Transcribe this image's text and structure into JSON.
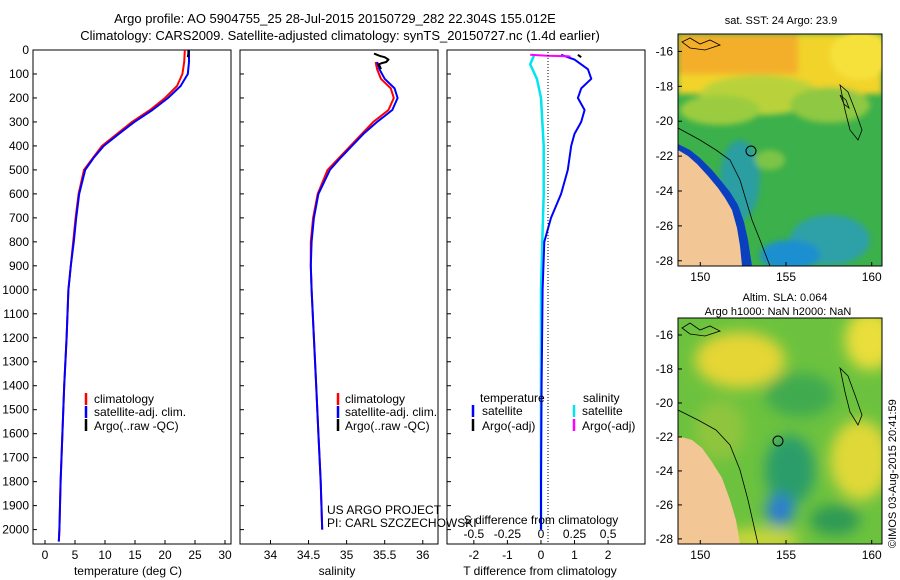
{
  "title": {
    "line1": "Argo profile: AO 5904755_25 28-Jul-2015 20150729_282 22.304S 155.012E",
    "line2": "Climatology: CARS2009. Satellite-adjusted climatology: synTS_20150727.nc (1.4d earlier)"
  },
  "colors": {
    "climatology": "#ff0000",
    "satellite": "#0000ff",
    "argo": "#000000",
    "sal_satellite": "#00e5ee",
    "sal_argo": "#ff00ff"
  },
  "chart_data": [
    {
      "type": "line",
      "id": "temperature",
      "xlabel": "temperature (deg C)",
      "ylabel": "",
      "xlim": [
        -2,
        31
      ],
      "ylim": [
        2060,
        0
      ],
      "xticks": [
        "0",
        "5",
        "10",
        "15",
        "20",
        "25",
        "30"
      ],
      "yticks": [
        "0",
        "100",
        "200",
        "300",
        "400",
        "500",
        "600",
        "700",
        "800",
        "900",
        "1000",
        "1100",
        "1200",
        "1300",
        "1400",
        "1500",
        "1600",
        "1700",
        "1800",
        "1900",
        "2000"
      ],
      "legend": [
        "climatology",
        "satellite-adj. clim.",
        "Argo(..raw -QC)"
      ],
      "series": [
        {
          "name": "climatology",
          "x": [
            23.3,
            23.2,
            22.9,
            22.0,
            20.0,
            17.5,
            14.5,
            12.0,
            9.5,
            8.0,
            6.5,
            5.6,
            5.1,
            4.7,
            4.3,
            3.9,
            3.6,
            3.2,
            2.9,
            2.6,
            2.4,
            2.3
          ],
          "y": [
            0,
            50,
            100,
            150,
            200,
            250,
            300,
            350,
            400,
            450,
            500,
            600,
            700,
            800,
            900,
            1000,
            1200,
            1400,
            1600,
            1800,
            2000,
            2050
          ]
        },
        {
          "name": "satellite-adj. clim.",
          "x": [
            24.0,
            24.0,
            23.8,
            22.6,
            20.5,
            17.9,
            14.9,
            12.3,
            9.8,
            8.1,
            6.7,
            5.7,
            5.2,
            4.8,
            4.3,
            3.9,
            3.6,
            3.2,
            2.9,
            2.6,
            2.4,
            2.3
          ],
          "y": [
            0,
            50,
            100,
            150,
            200,
            250,
            300,
            350,
            400,
            450,
            500,
            600,
            700,
            800,
            900,
            1000,
            1200,
            1400,
            1600,
            1800,
            2000,
            2050
          ]
        },
        {
          "name": "Argo(..raw -QC)",
          "x": [
            23.9,
            23.9,
            23.8
          ],
          "y": [
            0,
            15,
            30
          ]
        }
      ]
    },
    {
      "type": "line",
      "id": "salinity",
      "xlabel": "salinity",
      "xlim": [
        33.6,
        36.2
      ],
      "ylim": [
        2060,
        0
      ],
      "xticks": [
        "34",
        "34.5",
        "35",
        "35.5",
        "36"
      ],
      "legend": [
        "climatology",
        "satellite-adj. clim.",
        "Argo(..raw -QC)"
      ],
      "annotation": [
        "US ARGO PROJECT",
        "PI: CARL SZCZECHOWSKI"
      ],
      "series": [
        {
          "name": "climatology",
          "x": [
            35.38,
            35.4,
            35.45,
            35.58,
            35.62,
            35.55,
            35.35,
            35.2,
            35.05,
            34.9,
            34.75,
            34.62,
            34.56,
            34.53,
            34.53,
            34.54,
            34.57,
            34.6,
            34.63,
            34.66,
            34.68
          ],
          "y": [
            50,
            80,
            120,
            160,
            200,
            250,
            300,
            350,
            400,
            450,
            500,
            600,
            700,
            800,
            900,
            1000,
            1200,
            1400,
            1600,
            1800,
            2000
          ]
        },
        {
          "name": "satellite-adj. clim.",
          "x": [
            35.4,
            35.43,
            35.5,
            35.63,
            35.67,
            35.6,
            35.4,
            35.22,
            35.07,
            34.92,
            34.78,
            34.63,
            34.57,
            34.54,
            34.53,
            34.54,
            34.57,
            34.6,
            34.63,
            34.66,
            34.68
          ],
          "y": [
            50,
            80,
            120,
            160,
            200,
            250,
            300,
            350,
            400,
            450,
            500,
            600,
            700,
            800,
            900,
            1000,
            1200,
            1400,
            1600,
            1800,
            2000
          ]
        },
        {
          "name": "Argo(..raw -QC)",
          "x": [
            35.36,
            35.4,
            35.44,
            35.5,
            35.55,
            35.52,
            35.46,
            35.42,
            35.44,
            35.45
          ],
          "y": [
            15,
            20,
            25,
            30,
            40,
            50,
            55,
            60,
            70,
            80
          ]
        }
      ]
    },
    {
      "type": "line",
      "id": "difference",
      "xlabel": "T difference from climatology",
      "xlabel2": "S difference from climatology",
      "xticks_t": [
        "-2",
        "-1",
        "0",
        "1",
        "2"
      ],
      "xticks_s": [
        "-0.5",
        "-0.25",
        "0",
        "0.25",
        "0.5"
      ],
      "xlim": [
        -2.8,
        3.1
      ],
      "ylim": [
        2060,
        0
      ],
      "legend": {
        "col1_head": "temperature",
        "col1": [
          "satellite",
          "Argo(-adj)"
        ],
        "col2_head": "salinity",
        "col2": [
          "satellite",
          "Argo(-adj)"
        ]
      },
      "series": [
        {
          "name": "T satellite",
          "x": [
            0.6,
            1.0,
            1.4,
            1.5,
            1.2,
            1.1,
            1.3,
            1.2,
            1.0,
            0.9,
            0.8,
            0.6,
            0.3,
            0.1,
            0.05,
            0.02,
            0.0,
            0.0
          ],
          "y": [
            20,
            40,
            80,
            120,
            160,
            200,
            250,
            300,
            350,
            400,
            500,
            600,
            700,
            800,
            1000,
            1400,
            1800,
            2000
          ]
        },
        {
          "name": "T Argo(-adj)",
          "x": [
            1.1,
            1.2
          ],
          "y": [
            20,
            30
          ]
        },
        {
          "name": "S satellite",
          "x": [
            -0.05,
            -0.08,
            -0.03,
            0.0,
            0.02,
            0.02,
            0.01,
            0.0,
            0.0,
            0.0
          ],
          "y": [
            20,
            60,
            120,
            200,
            400,
            600,
            800,
            1000,
            1500,
            2000
          ]
        },
        {
          "name": "S Argo(-adj)",
          "x": [
            -0.08,
            -0.02,
            0.05,
            0.12,
            0.2,
            0.22
          ],
          "y": [
            20,
            22,
            24,
            25,
            26,
            28
          ]
        }
      ]
    }
  ],
  "maps": [
    {
      "title": "sat. SST: 24 Argo: 23.9",
      "xticks": [
        "150",
        "155",
        "160"
      ],
      "yticks": [
        "-16",
        "-18",
        "-20",
        "-22",
        "-24",
        "-26",
        "-28"
      ]
    },
    {
      "title_line1": "Altim. SLA: 0.064",
      "title_line2": "Argo h1000: NaN h2000: NaN",
      "xticks": [
        "150",
        "155",
        "160"
      ],
      "yticks": [
        "-16",
        "-18",
        "-20",
        "-22",
        "-24",
        "-26",
        "-28"
      ]
    }
  ],
  "footer_stamp": "©IMOS 03-Aug-2015 20:41:59"
}
